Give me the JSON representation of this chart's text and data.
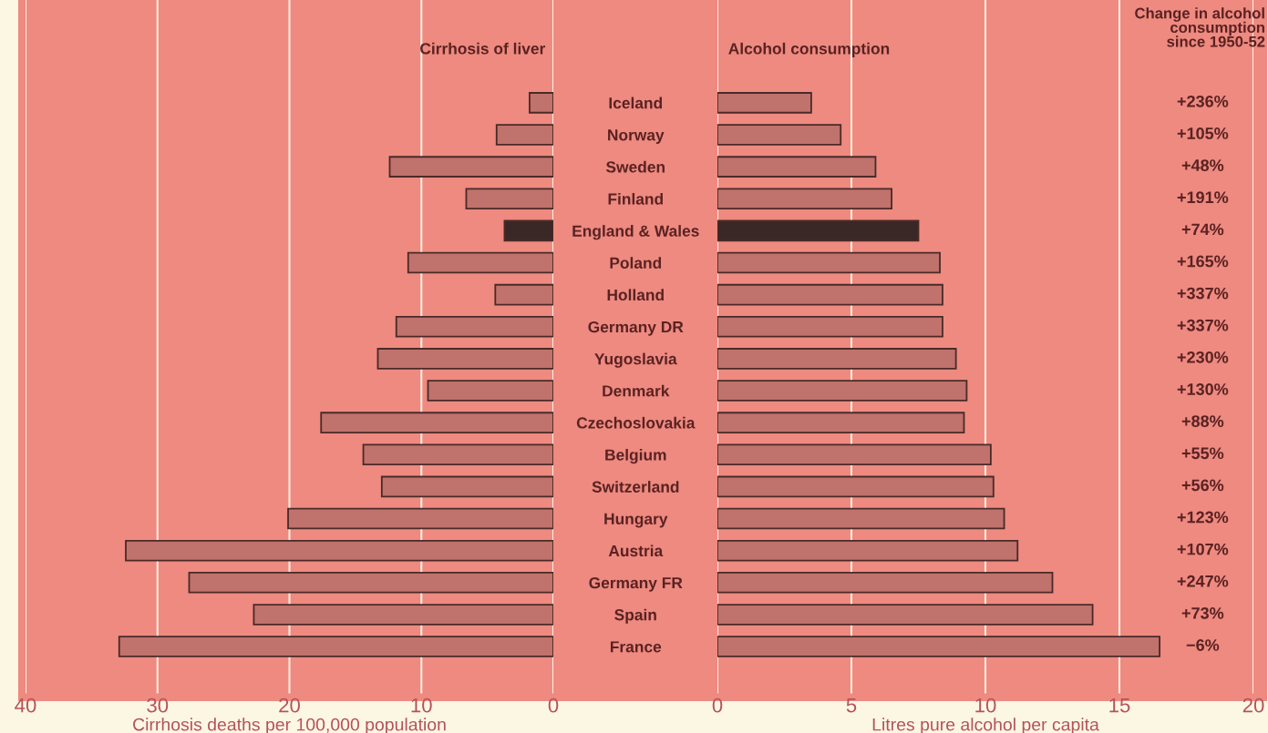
{
  "chart_data": [
    {
      "type": "bar",
      "orientation": "horizontal",
      "title": "Cirrhosis of liver",
      "xlabel": "Cirrhosis deaths per 100,000 population",
      "categories": [
        "Iceland",
        "Norway",
        "Sweden",
        "Finland",
        "England & Wales",
        "Poland",
        "Holland",
        "Germany DR",
        "Yugoslavia",
        "Denmark",
        "Czechoslovakia",
        "Belgium",
        "Switzerland",
        "Hungary",
        "Austria",
        "Germany FR",
        "Spain",
        "France"
      ],
      "values": [
        1.8,
        4.3,
        12.4,
        6.6,
        3.7,
        11.0,
        4.4,
        11.9,
        13.3,
        9.5,
        17.6,
        14.4,
        13.0,
        20.1,
        32.4,
        27.6,
        22.7,
        32.9
      ],
      "colors": [
        "#c0726c",
        "#c0726c",
        "#c0726c",
        "#c0726c",
        "#3a2826",
        "#c0726c",
        "#c0726c",
        "#c0726c",
        "#c0726c",
        "#c0726c",
        "#c0726c",
        "#c0726c",
        "#c0726c",
        "#c0726c",
        "#c0726c",
        "#c0726c",
        "#c0726c",
        "#c0726c"
      ],
      "xlim": [
        40,
        0
      ],
      "xticks": [
        40,
        30,
        20,
        10,
        0
      ],
      "grid": "x"
    },
    {
      "type": "bar",
      "orientation": "horizontal",
      "title": "Alcohol consumption",
      "xlabel": "Litres pure alcohol per capita",
      "values": [
        3.5,
        4.6,
        5.9,
        6.5,
        7.5,
        8.3,
        8.4,
        8.4,
        8.9,
        9.3,
        9.2,
        10.2,
        10.3,
        10.7,
        11.2,
        12.5,
        14.0,
        16.5
      ],
      "categories": [
        null,
        null,
        null,
        null,
        null,
        null,
        null,
        null,
        null,
        null,
        null,
        null,
        null,
        null,
        null,
        null,
        null,
        null
      ],
      "colors": [
        "#c0726c",
        "#c0726c",
        "#c0726c",
        "#c0726c",
        "#3a2826",
        "#c0726c",
        "#c0726c",
        "#c0726c",
        "#c0726c",
        "#c0726c",
        "#c0726c",
        "#c0726c",
        "#c0726c",
        "#c0726c",
        "#c0726c",
        "#c0726c",
        "#c0726c",
        "#c0726c"
      ],
      "xlim": [
        0,
        20
      ],
      "xticks": [
        0,
        5,
        10,
        15,
        20
      ],
      "grid": "x",
      "tick_labels": "x"
    },
    {
      "type": "other",
      "title": "Change in alcohol\nconsumption\nsince 1950-52",
      "categories": [
        null,
        null,
        null,
        null,
        null,
        null,
        null,
        null,
        null,
        null,
        null,
        null,
        null,
        null,
        null,
        null,
        null,
        null
      ],
      "value_labels": [
        "+236%",
        "+105%",
        "+48%",
        "+191%",
        "+74%",
        "+165%",
        "+337%",
        "+337%",
        "+230%",
        "+130%",
        "+88%",
        "+55%",
        "+56%",
        "+123%",
        "+107%",
        "+247%",
        "+73%",
        "−6%"
      ]
    }
  ]
}
